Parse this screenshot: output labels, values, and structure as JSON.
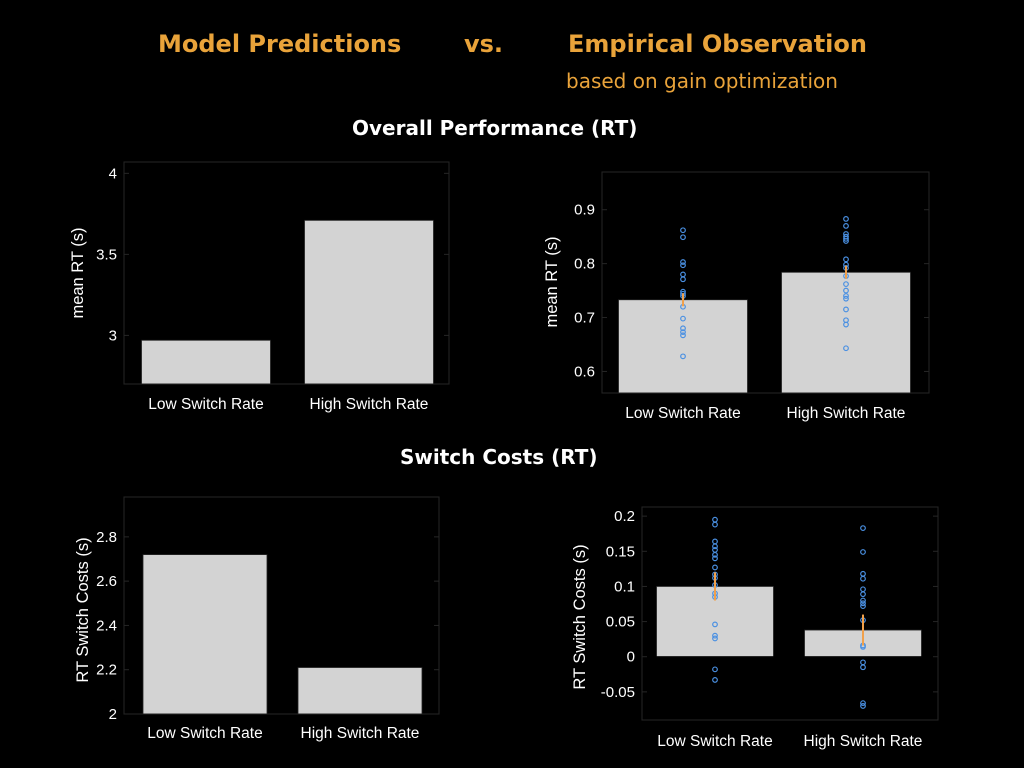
{
  "header": {
    "model_title": "Model Predictions",
    "vs": "vs.",
    "empirical_title": "Empirical Observation",
    "subtitle": "based on gain optimization"
  },
  "sections": {
    "overall": "Overall Performance (RT)",
    "switch": "Switch Costs (RT)"
  },
  "colors": {
    "background": "#000000",
    "title": "#e9a33a",
    "bar": "#d3d3d3",
    "points": "#4a90e2",
    "errorbar": "#f0a04b"
  },
  "chart_data": [
    {
      "type": "bar",
      "panel": "model-overall",
      "categories": [
        "Low Switch Rate",
        "High Switch Rate"
      ],
      "values": [
        2.97,
        3.71
      ],
      "ylabel": "mean RT (s)",
      "ylim": [
        2.7,
        4.07
      ],
      "yticks": [
        3,
        3.5,
        4
      ],
      "ytick_labels": [
        "3",
        "3.5",
        "4"
      ]
    },
    {
      "type": "bar",
      "panel": "empirical-overall",
      "categories": [
        "Low Switch Rate",
        "High Switch Rate"
      ],
      "values": [
        0.733,
        0.784
      ],
      "errors": [
        0.012,
        0.012
      ],
      "points": [
        [
          0.862,
          0.849,
          0.803,
          0.797,
          0.78,
          0.771,
          0.748,
          0.744,
          0.74,
          0.72,
          0.698,
          0.68,
          0.673,
          0.667,
          0.628
        ],
        [
          0.883,
          0.87,
          0.855,
          0.85,
          0.846,
          0.842,
          0.808,
          0.798,
          0.792,
          0.777,
          0.762,
          0.75,
          0.74,
          0.735,
          0.715,
          0.695,
          0.687,
          0.643
        ]
      ],
      "ylabel": "mean RT (s)",
      "ylim": [
        0.56,
        0.97
      ],
      "yticks": [
        0.6,
        0.7,
        0.8,
        0.9
      ],
      "ytick_labels": [
        "0.6",
        "0.7",
        "0.8",
        "0.9"
      ]
    },
    {
      "type": "bar",
      "panel": "model-switch",
      "categories": [
        "Low Switch Rate",
        "High Switch Rate"
      ],
      "values": [
        2.72,
        2.21
      ],
      "ylabel": "RT Switch Costs (s)",
      "ylim": [
        2.0,
        2.98
      ],
      "yticks": [
        2,
        2.2,
        2.4,
        2.6,
        2.8
      ],
      "ytick_labels": [
        "2",
        "2.2",
        "2.4",
        "2.6",
        "2.8"
      ]
    },
    {
      "type": "bar",
      "panel": "empirical-switch",
      "categories": [
        "Low Switch Rate",
        "High Switch Rate"
      ],
      "values": [
        0.1,
        0.038
      ],
      "errors": [
        0.02,
        0.022
      ],
      "points": [
        [
          0.195,
          0.188,
          0.164,
          0.157,
          0.152,
          0.145,
          0.14,
          0.127,
          0.117,
          0.112,
          0.102,
          0.09,
          0.085,
          0.046,
          0.03,
          0.026,
          -0.018,
          -0.033
        ],
        [
          0.183,
          0.149,
          0.118,
          0.111,
          0.096,
          0.089,
          0.08,
          0.076,
          0.072,
          0.052,
          0.016,
          0.014,
          -0.008,
          -0.015,
          -0.066,
          -0.07
        ]
      ],
      "ylabel": "RT Switch Costs (s)",
      "ylim": [
        -0.09,
        0.213
      ],
      "yticks": [
        -0.05,
        0,
        0.05,
        0.1,
        0.15,
        0.2
      ],
      "ytick_labels": [
        "-0.05",
        "0",
        "0.05",
        "0.1",
        "0.15",
        "0.2"
      ]
    }
  ]
}
